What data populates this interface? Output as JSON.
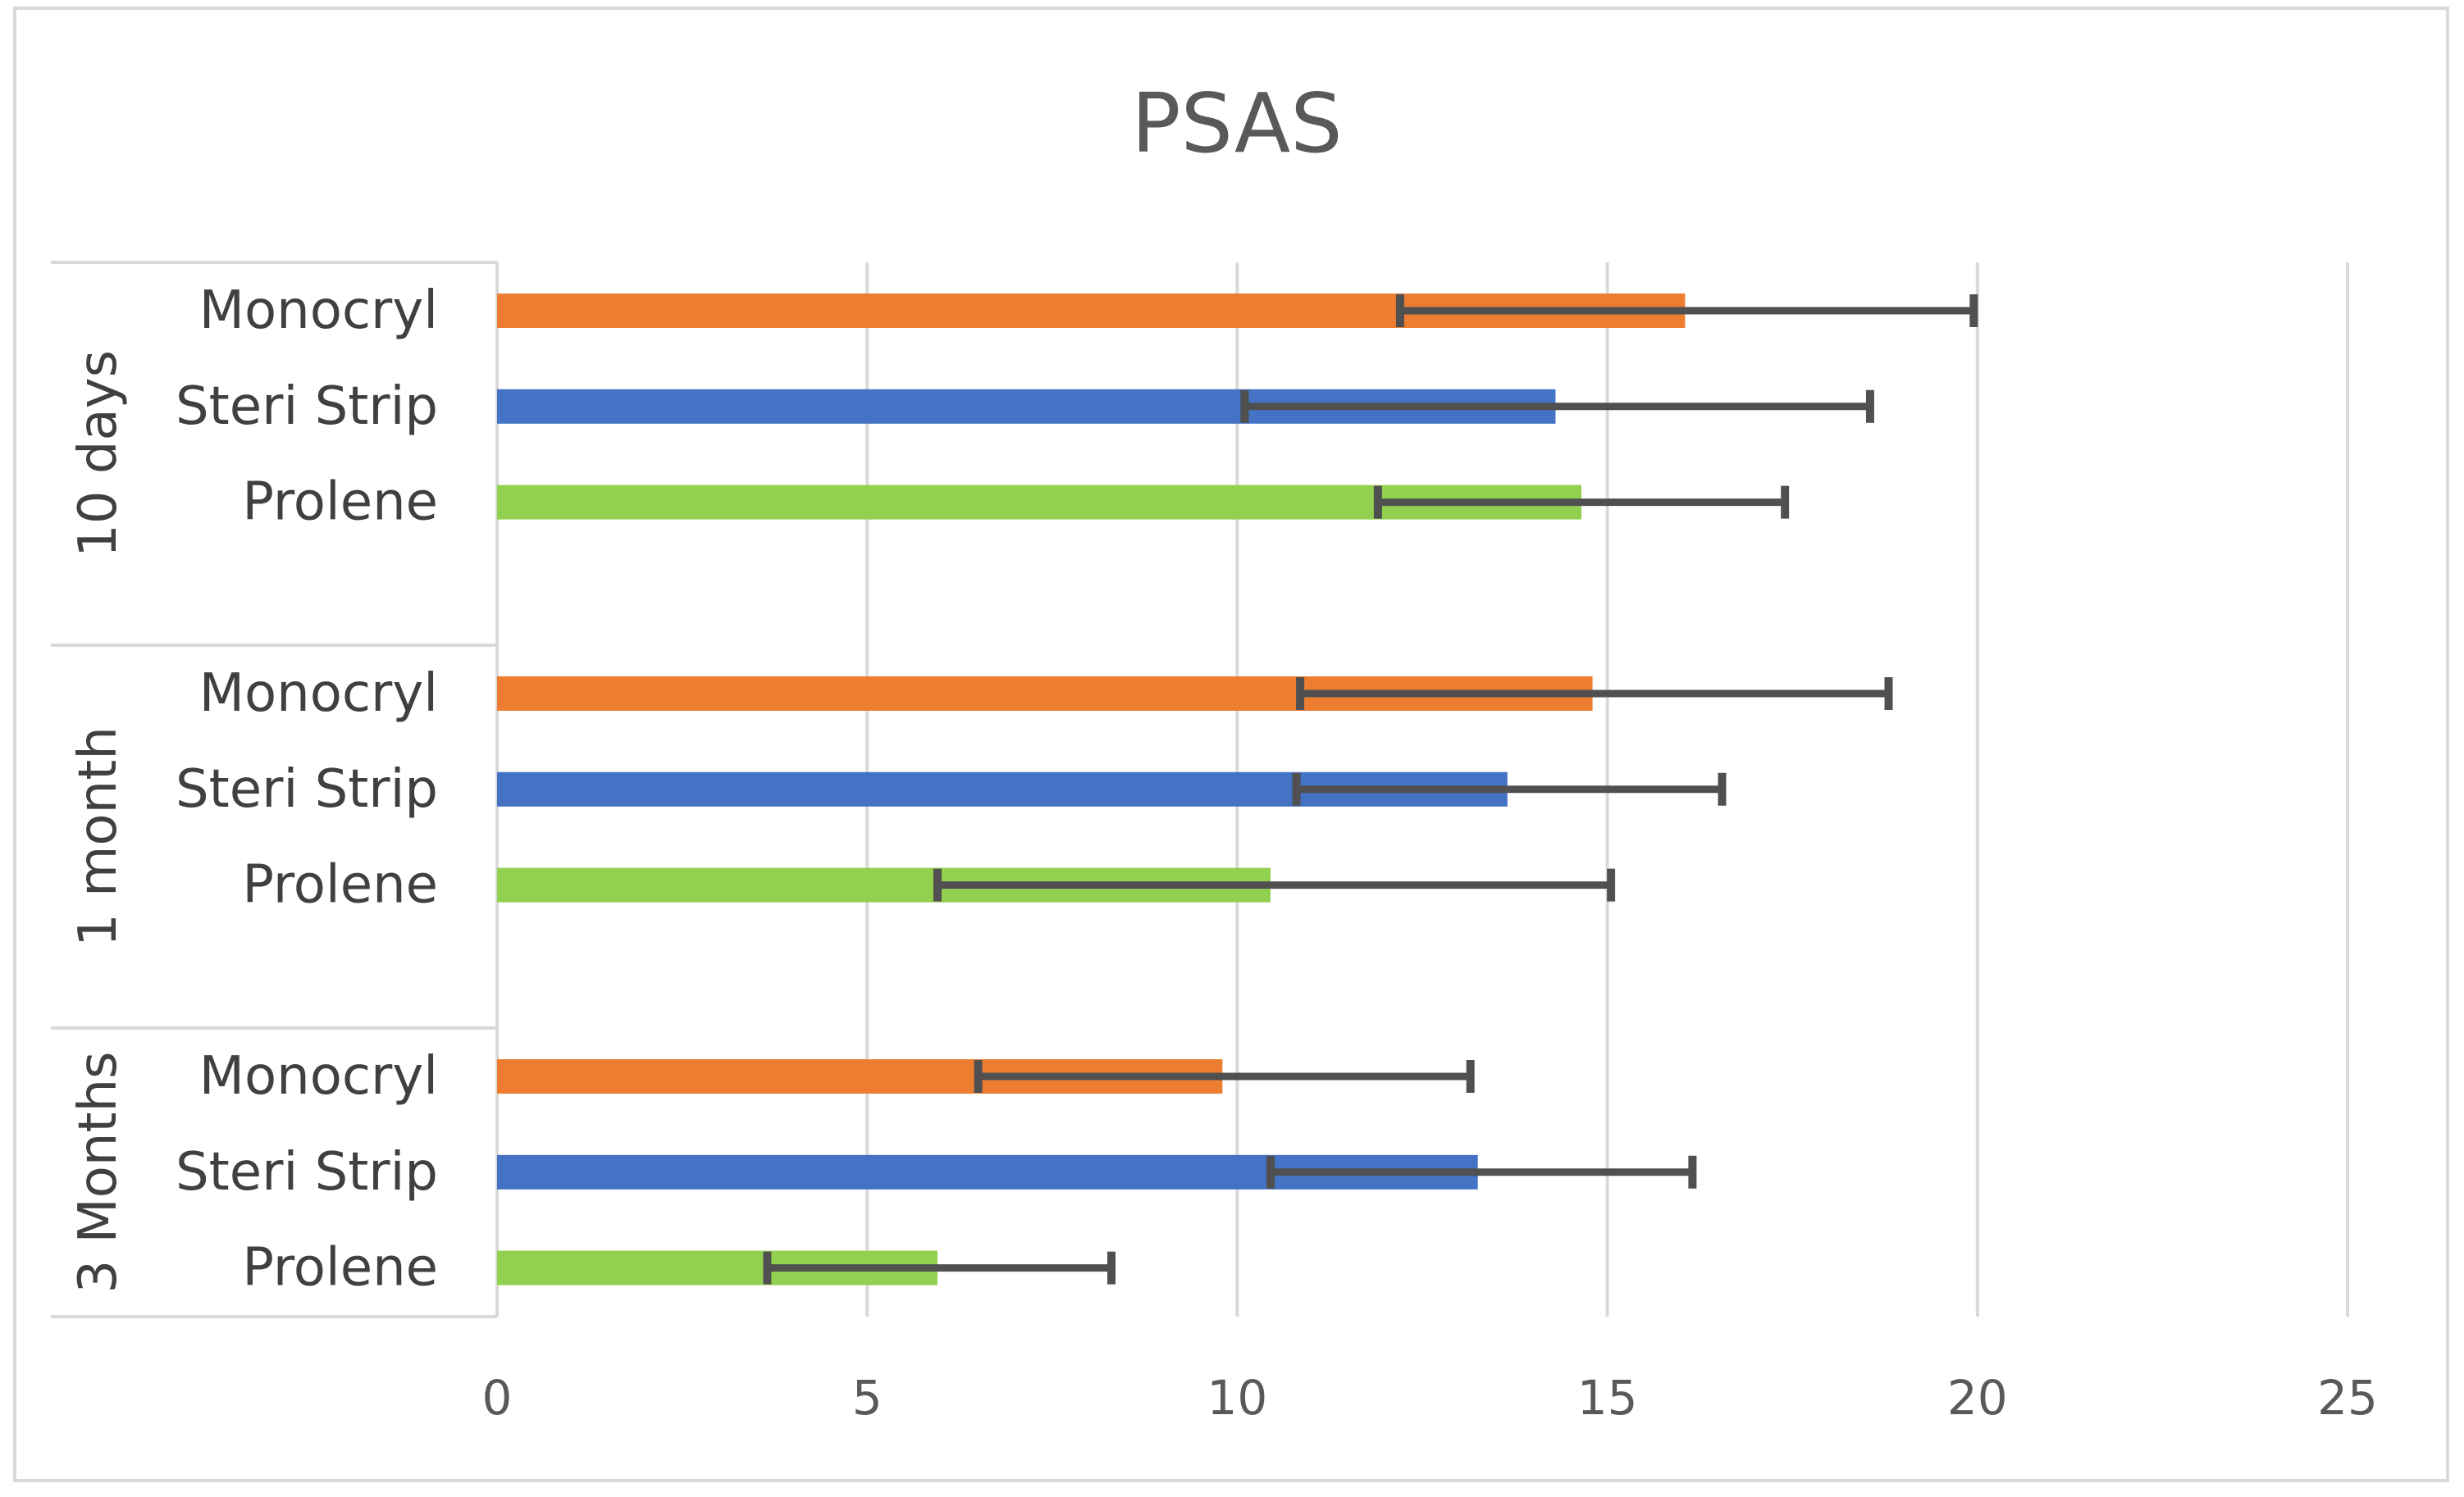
{
  "chart_data": {
    "type": "bar",
    "orientation": "horizontal",
    "title": "PSAS",
    "xlabel": "",
    "ylabel": "",
    "xlim": [
      0,
      25
    ],
    "x_ticks": [
      0,
      5,
      10,
      15,
      20,
      25
    ],
    "grid": true,
    "legend": "none",
    "groups": [
      {
        "name": "10 days",
        "bars": [
          {
            "label": "Monocryl",
            "value": 16.05,
            "error_low": 12.2,
            "error_high": 19.95,
            "color": "#ED7D31"
          },
          {
            "label": "Steri Strip",
            "value": 14.3,
            "error_low": 10.1,
            "error_high": 18.55,
            "color": "#4472C4"
          },
          {
            "label": "Prolene",
            "value": 14.65,
            "error_low": 11.9,
            "error_high": 17.4,
            "color": "#92D050"
          }
        ]
      },
      {
        "name": "1 month",
        "bars": [
          {
            "label": "Monocryl",
            "value": 14.8,
            "error_low": 10.85,
            "error_high": 18.8,
            "color": "#ED7D31"
          },
          {
            "label": "Steri Strip",
            "value": 13.65,
            "error_low": 10.8,
            "error_high": 16.55,
            "color": "#4472C4"
          },
          {
            "label": "Prolene",
            "value": 10.45,
            "error_low": 5.95,
            "error_high": 15.05,
            "color": "#92D050"
          }
        ]
      },
      {
        "name": "3 Months",
        "bars": [
          {
            "label": "Monocryl",
            "value": 9.8,
            "error_low": 6.5,
            "error_high": 13.15,
            "color": "#ED7D31"
          },
          {
            "label": "Steri Strip",
            "value": 13.25,
            "error_low": 10.45,
            "error_high": 16.15,
            "color": "#4472C4"
          },
          {
            "label": "Prolene",
            "value": 5.95,
            "error_low": 3.65,
            "error_high": 8.3,
            "color": "#92D050"
          }
        ]
      }
    ]
  }
}
